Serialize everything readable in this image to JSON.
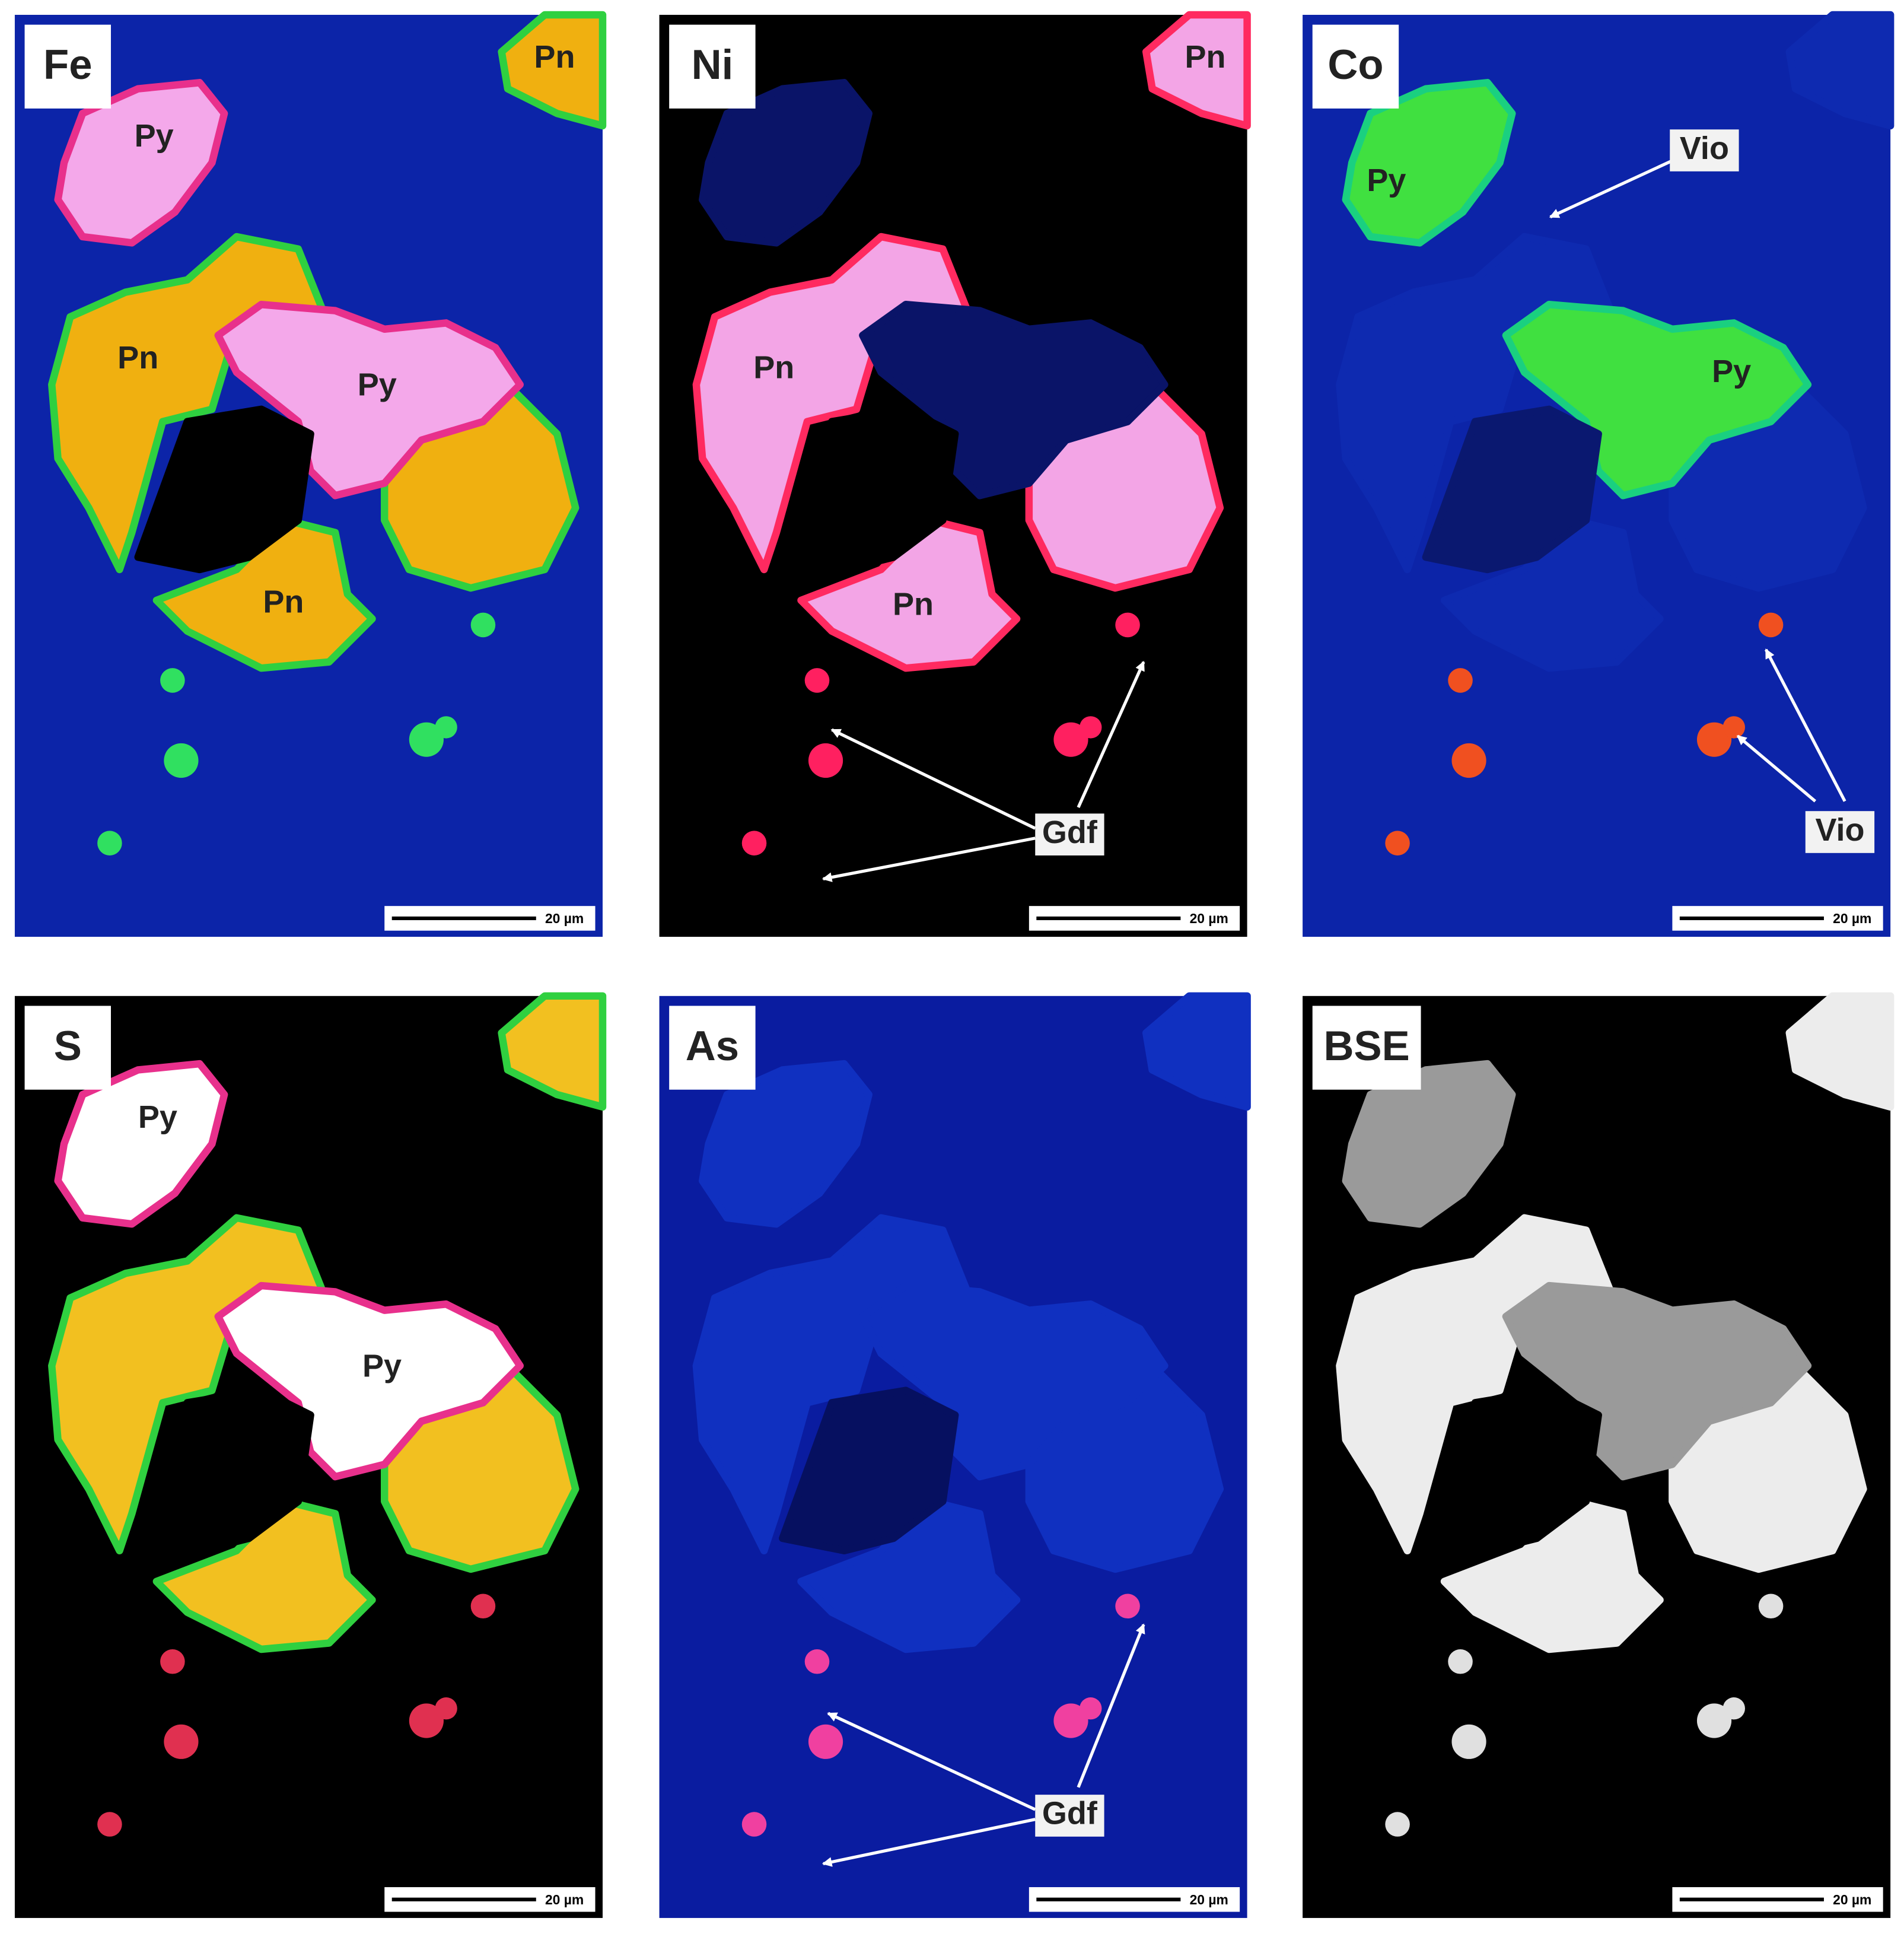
{
  "panels": [
    {
      "element": "Fe",
      "labels": [
        "Pn",
        "Py",
        "Pn",
        "Py",
        "Pn"
      ],
      "scale_bar": "20 µm"
    },
    {
      "element": "Ni",
      "labels": [
        "Pn",
        "Pn",
        "Pn",
        "Gdf"
      ],
      "scale_bar": "20 µm"
    },
    {
      "element": "Co",
      "labels": [
        "Py",
        "Vio",
        "Py",
        "Vio"
      ],
      "scale_bar": "20 µm"
    },
    {
      "element": "S",
      "labels": [
        "Py",
        "Py"
      ],
      "scale_bar": "20 µm"
    },
    {
      "element": "As",
      "labels": [
        "Gdf"
      ],
      "scale_bar": "20 µm"
    },
    {
      "element": "BSE",
      "labels": [],
      "scale_bar": "20 µm"
    }
  ]
}
